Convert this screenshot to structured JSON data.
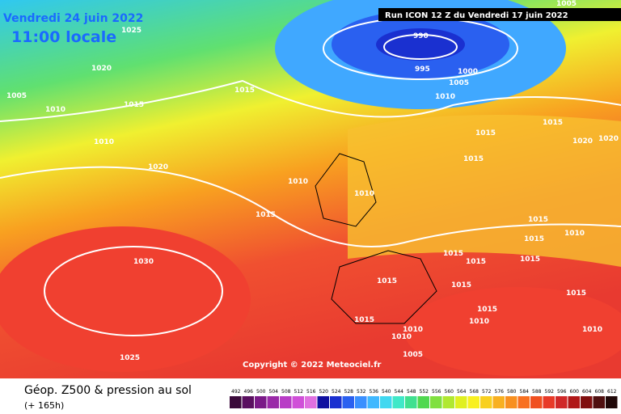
{
  "header": {
    "date": "Vendredi 24 juin 2022",
    "time": "11:00 locale",
    "run": "Run ICON 12 Z du Vendredi 17 juin 2022"
  },
  "copyright": "Copyright © 2022 Meteociel.fr",
  "footer": {
    "title": "Géop. Z500 & pression au sol",
    "lead": "(+ 165h)"
  },
  "isobar_labels": [
    "1025",
    "1020",
    "1005",
    "1010",
    "1015",
    "1010",
    "1020",
    "1015",
    "1010",
    "1015",
    "1010",
    "990",
    "995",
    "1000",
    "1005",
    "1010",
    "1005",
    "1015",
    "1015",
    "1020",
    "1020",
    "1015",
    "1015",
    "1015",
    "1010",
    "1030",
    "1025",
    "1015",
    "1015",
    "1010",
    "1010",
    "1005",
    "1015",
    "1015",
    "1015",
    "1015",
    "1015",
    "1015",
    "1010",
    "1010"
  ],
  "colorbar": {
    "values": [
      492,
      496,
      500,
      504,
      508,
      512,
      516,
      520,
      524,
      528,
      532,
      536,
      540,
      544,
      548,
      552,
      556,
      560,
      564,
      568,
      572,
      576,
      580,
      584,
      588,
      592,
      596,
      600,
      604,
      608,
      612
    ],
    "colors": [
      "#3a0a3a",
      "#5a1060",
      "#7a1a88",
      "#9a2aa8",
      "#b83cc6",
      "#d050d8",
      "#e070e0",
      "#1010a0",
      "#1a30d0",
      "#2a60f0",
      "#3a90ff",
      "#40b8ff",
      "#40d8f0",
      "#40e8c8",
      "#40e090",
      "#50d850",
      "#80e040",
      "#b0e830",
      "#e0f020",
      "#f8f020",
      "#f8d020",
      "#f8b020",
      "#f89020",
      "#f87020",
      "#f05020",
      "#e83a28",
      "#d02828",
      "#b01818",
      "#801010",
      "#501010",
      "#200808"
    ]
  }
}
